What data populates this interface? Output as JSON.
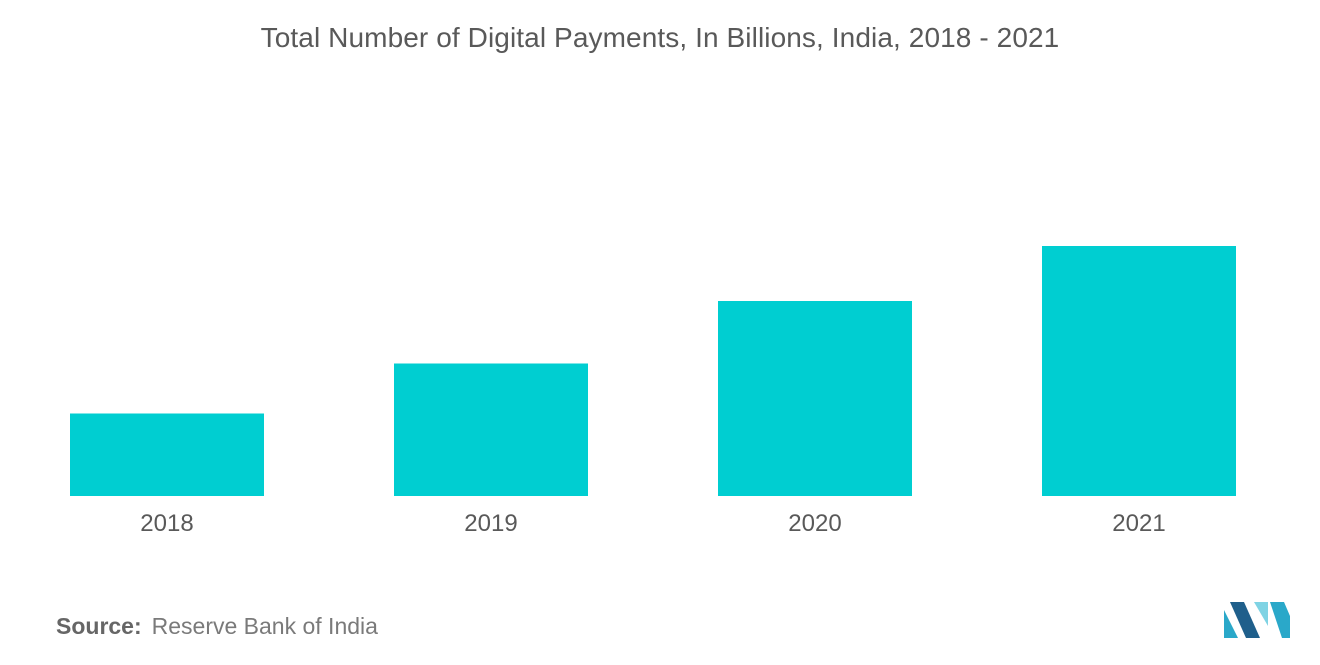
{
  "chart_data": {
    "type": "bar",
    "title": "Total Number of Digital Payments, In Billions, India, 2018 - 2021",
    "categories": [
      "2018",
      "2019",
      "2020",
      "2021"
    ],
    "values": [
      3.3,
      5.3,
      7.8,
      10.0
    ],
    "xlabel": "",
    "ylabel": "",
    "ylim": [
      0,
      12
    ],
    "grid": false,
    "legend": "none",
    "colors": {
      "bar": "#00ced1",
      "text": "#595959"
    }
  },
  "source": {
    "label": "Source:",
    "text": "Reserve Bank of India"
  },
  "logo": {
    "icon": "mordor-intelligence-logo-icon",
    "colors": [
      "#1f5f8b",
      "#2aa8c9",
      "#7fd3e4"
    ]
  }
}
